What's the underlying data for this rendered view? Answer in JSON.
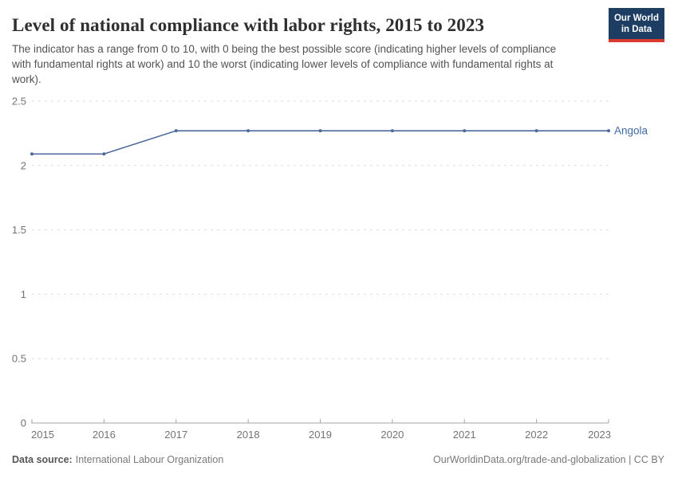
{
  "header": {
    "title": "Level of national compliance with labor rights, 2015 to 2023",
    "subtitle": "The indicator has a range from 0 to 10, with 0 being the best possible score (indicating higher levels of compliance with fundamental rights at work) and 10 the worst (indicating lower levels of compliance with fundamental rights at work).",
    "logo": {
      "line1": "Our World",
      "line2": "in Data",
      "bg_color": "#1d3d63",
      "accent_color": "#dc3a2f"
    }
  },
  "chart_data": {
    "type": "line",
    "title": "Level of national compliance with labor rights, 2015 to 2023",
    "x": [
      2015,
      2016,
      2017,
      2018,
      2019,
      2020,
      2021,
      2022,
      2023
    ],
    "x_tick_labels": [
      "2015",
      "2016",
      "2017",
      "2018",
      "2019",
      "2020",
      "2021",
      "2022",
      "2023"
    ],
    "series": [
      {
        "name": "Angola",
        "color": "#4c6a9c",
        "values": [
          2.09,
          2.09,
          2.27,
          2.27,
          2.27,
          2.27,
          2.27,
          2.27,
          2.27
        ]
      }
    ],
    "xlim": [
      2015,
      2023
    ],
    "ylim": [
      0,
      2.5
    ],
    "y_ticks": [
      0,
      0.5,
      1,
      1.5,
      2,
      2.5
    ],
    "grid": "horizontal-dashed",
    "legend_position": "end-of-line-label",
    "label_color": "#3d6aa5",
    "axis_color": "#a5a5a5",
    "grid_color": "#dcdcdc",
    "tick_label_color": "#737373"
  },
  "footer": {
    "source_label": "Data source:",
    "source_value": "International Labour Organization",
    "attribution": "OurWorldinData.org/trade-and-globalization | CC BY"
  }
}
